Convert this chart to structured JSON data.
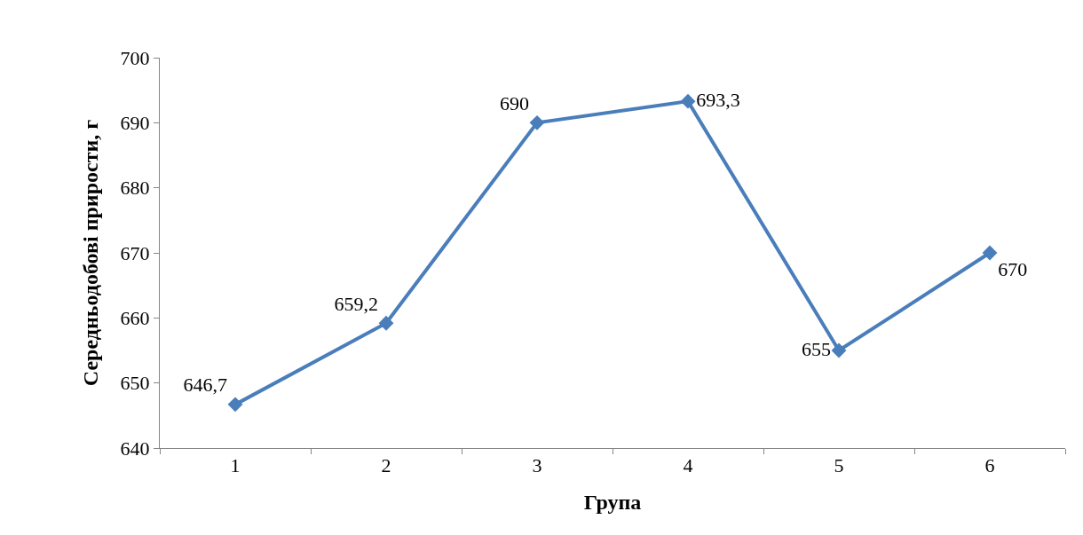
{
  "chart_data": {
    "type": "line",
    "xlabel": "Група",
    "ylabel": "Середньодобові прирости, г",
    "categories": [
      "1",
      "2",
      "3",
      "4",
      "5",
      "6"
    ],
    "values": [
      646.7,
      659.2,
      690,
      693.3,
      655,
      670
    ],
    "value_labels": [
      "646,7",
      "659,2",
      "690",
      "693,3",
      "655",
      "670"
    ],
    "color": "#4a7ebb",
    "marker": "diamond",
    "line_style": "solid",
    "ylim": [
      640,
      700
    ],
    "yticks": [
      640,
      650,
      660,
      670,
      680,
      690,
      700
    ],
    "grid": false
  }
}
